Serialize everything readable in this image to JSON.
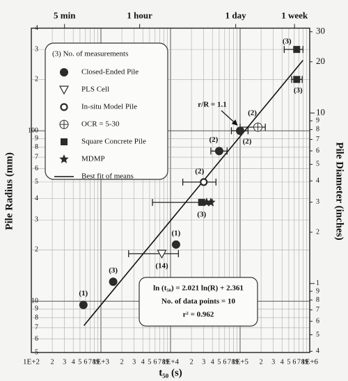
{
  "chart_data": {
    "type": "scatter",
    "x_label": "t₅₀ (s)",
    "y_label": "Pile Radius (mm)",
    "y2_label": "Pile Diameter (inches)",
    "log_x": true,
    "log_y": true,
    "grid": true,
    "xlim": [
      100,
      1000000
    ],
    "ylim": [
      5,
      400
    ],
    "y2lim": [
      0.3937,
      31.496
    ],
    "xticks": [
      {
        "value": 100,
        "label": "1E+2"
      },
      {
        "value": 200,
        "label": "2"
      },
      {
        "value": 300,
        "label": "3"
      },
      {
        "value": 400,
        "label": "4"
      },
      {
        "value": 500,
        "label": "5"
      },
      {
        "value": 600,
        "label": "6"
      },
      {
        "value": 700,
        "label": "7"
      },
      {
        "value": 800,
        "label": "8"
      },
      {
        "value": 900,
        "label": "9"
      },
      {
        "value": 1000,
        "label": "1E+3"
      },
      {
        "value": 2000,
        "label": "2"
      },
      {
        "value": 3000,
        "label": "3"
      },
      {
        "value": 4000,
        "label": "4"
      },
      {
        "value": 5000,
        "label": "5"
      },
      {
        "value": 6000,
        "label": "6"
      },
      {
        "value": 7000,
        "label": "7"
      },
      {
        "value": 8000,
        "label": "8"
      },
      {
        "value": 9000,
        "label": "9"
      },
      {
        "value": 10000,
        "label": "1E+4"
      },
      {
        "value": 20000,
        "label": "2"
      },
      {
        "value": 30000,
        "label": "3"
      },
      {
        "value": 40000,
        "label": "4"
      },
      {
        "value": 50000,
        "label": "5"
      },
      {
        "value": 60000,
        "label": "6"
      },
      {
        "value": 70000,
        "label": "7"
      },
      {
        "value": 80000,
        "label": "8"
      },
      {
        "value": 90000,
        "label": "9"
      },
      {
        "value": 100000,
        "label": "1E+5"
      },
      {
        "value": 200000,
        "label": "2"
      },
      {
        "value": 300000,
        "label": "3"
      },
      {
        "value": 400000,
        "label": "4"
      },
      {
        "value": 500000,
        "label": "5"
      },
      {
        "value": 600000,
        "label": "6"
      },
      {
        "value": 700000,
        "label": "7"
      },
      {
        "value": 800000,
        "label": "8"
      },
      {
        "value": 900000,
        "label": "9"
      },
      {
        "value": 1000000,
        "label": "1E+6"
      }
    ],
    "yticks": [
      5,
      6,
      7,
      8,
      9,
      10,
      {
        "value": 20,
        "label": "2"
      },
      {
        "value": 30,
        "label": "3"
      },
      {
        "value": 40,
        "label": "4"
      },
      {
        "value": 50,
        "label": "5"
      },
      {
        "value": 60,
        "label": "6"
      },
      {
        "value": 70,
        "label": "7"
      },
      {
        "value": 80,
        "label": "8"
      },
      {
        "value": 90,
        "label": "9"
      },
      100,
      {
        "value": 200,
        "label": "2"
      },
      {
        "value": 300,
        "label": "3"
      },
      {
        "value": 400,
        "label": "4"
      }
    ],
    "y2ticks": [
      {
        "value": 0.4,
        "label": "4"
      },
      {
        "value": 0.5,
        "label": "5"
      },
      {
        "value": 0.6,
        "label": "6"
      },
      {
        "value": 0.7,
        "label": "7"
      },
      {
        "value": 0.8,
        "label": "8"
      },
      {
        "value": 0.9,
        "label": "9"
      },
      1,
      2,
      3,
      4,
      5,
      6,
      7,
      8,
      9,
      10,
      20,
      30
    ],
    "top_ticks": [
      {
        "value": 300,
        "label": "5 min"
      },
      {
        "value": 3600,
        "label": "1 hour"
      },
      {
        "value": 86400,
        "label": "1 day"
      },
      {
        "value": 604800,
        "label": "1 week"
      }
    ],
    "legend_title": "(3) No. of measurements",
    "series": [
      {
        "name": "Closed-Ended Pile",
        "marker": "circle-filled",
        "color": "#2b2b2b",
        "x": [
          560,
          1500,
          12000,
          50000,
          100000
        ],
        "values": [
          9.5,
          13,
          21.5,
          76,
          100
        ],
        "x_low": [
          null,
          null,
          null,
          38000,
          75000
        ],
        "x_high": [
          null,
          null,
          null,
          65000,
          130000
        ],
        "point_labels": [
          "(1)",
          "(3)",
          "(1)",
          "(2)",
          "(2)"
        ]
      },
      {
        "name": "PLS Cell",
        "marker": "triangle-down",
        "color": "#2b2b2b",
        "x": [
          7500
        ],
        "values": [
          19
        ],
        "x_low": [
          2500
        ],
        "x_high": [
          13000
        ],
        "point_labels": [
          "(14)"
        ]
      },
      {
        "name": "In-situ Model Pile",
        "marker": "circle-open",
        "color": "#2b2b2b",
        "x": [
          30000
        ],
        "values": [
          50
        ],
        "x_low": [
          15000
        ],
        "x_high": [
          45000
        ],
        "point_labels": [
          "(2)"
        ]
      },
      {
        "name": "OCR = 5-30",
        "marker": "circle-cross",
        "color": "#2b2b2b",
        "x": [
          180000
        ],
        "values": [
          105
        ],
        "x_low": [
          100000
        ],
        "x_high": [
          230000
        ],
        "point_labels": [
          "(2)"
        ]
      },
      {
        "name": "Square Concrete Pile",
        "marker": "square",
        "color": "#2b2b2b",
        "x": [
          28000,
          650000,
          650000
        ],
        "values": [
          38,
          300,
          200
        ],
        "x_low": [
          5500,
          430000,
          550000
        ],
        "x_high": [
          40000,
          800000,
          780000
        ],
        "point_labels": [
          "(3)",
          "(3)",
          "(3)"
        ]
      },
      {
        "name": "MDMP",
        "marker": "star",
        "color": "#2b2b2b",
        "x": [
          33000,
          38000
        ],
        "values": [
          38,
          38
        ]
      },
      {
        "name": "Best fit of means",
        "marker": "line",
        "color": "#111111",
        "x": [
          570,
          800000
        ],
        "values": [
          7.2,
          259
        ]
      }
    ],
    "annotation": "r/R = 1.1",
    "equation_lines": [
      "ln (t₅₀) = 2.021 ln(R) + 2.361",
      "No. of data points = 10",
      "r² = 0.962"
    ]
  }
}
